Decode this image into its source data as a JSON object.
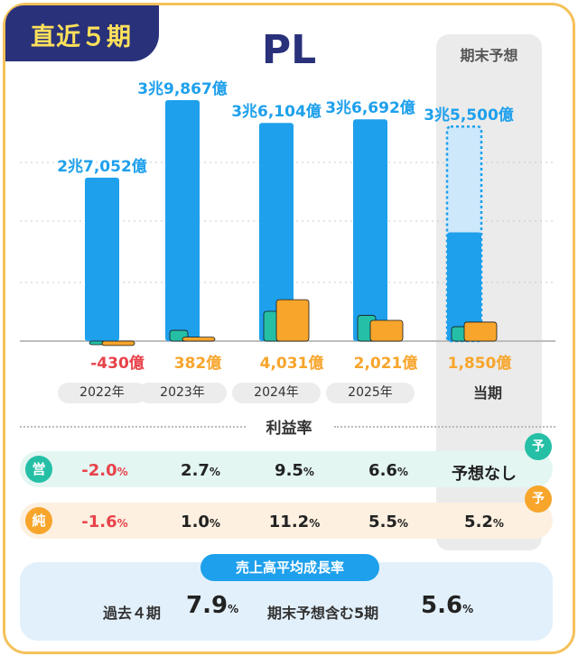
{
  "header": {
    "tag": "直近５期",
    "title": "PL",
    "forecast_label": "期末予想"
  },
  "colors": {
    "revenue": "#1ea0ec",
    "forecast_fill": "#cde8fa",
    "operating": "#25bfa6",
    "net": "#f7a52b",
    "negative": "#e8424a",
    "navy": "#28317a"
  },
  "chart_data": {
    "type": "bar",
    "categories": [
      "2022年",
      "2023年",
      "2024年",
      "2025年",
      "当期"
    ],
    "series": [
      {
        "values": [
          27052,
          39867,
          36104,
          36692,
          35500
        ]
      },
      {
        "values": [
          -430,
          382,
          4031,
          2021,
          1850
        ]
      }
    ],
    "revenue_labels": [
      "2兆7,052億",
      "3兆9,867億",
      "3兆6,104億",
      "3兆6,692億",
      "3兆5,500億"
    ],
    "profit_labels": [
      "-430億",
      "382億",
      "4,031億",
      "2,021億",
      "1,850億"
    ],
    "forecast_revenue_shown": 18000,
    "forecast_operating": 1400,
    "forecast_net": 1850,
    "operating_values": [
      -200,
      1050,
      2900,
      2500,
      1400
    ],
    "ylim": [
      -500,
      40000
    ]
  },
  "margins": {
    "title": "利益率",
    "operating": {
      "icon": "営",
      "values": [
        "-2.0",
        "2.7",
        "9.5",
        "6.6",
        "予想なし"
      ],
      "unit": "%"
    },
    "net": {
      "icon": "純",
      "values": [
        "-1.6",
        "1.0",
        "11.2",
        "5.5",
        "5.2"
      ],
      "unit": "%"
    },
    "badge": "予"
  },
  "growth": {
    "title": "売上高平均成長率",
    "past_label": "過去４期",
    "past_value": "7.9",
    "unit": "%",
    "incl_label": "期末予想含む5期",
    "incl_value": "5.6"
  }
}
